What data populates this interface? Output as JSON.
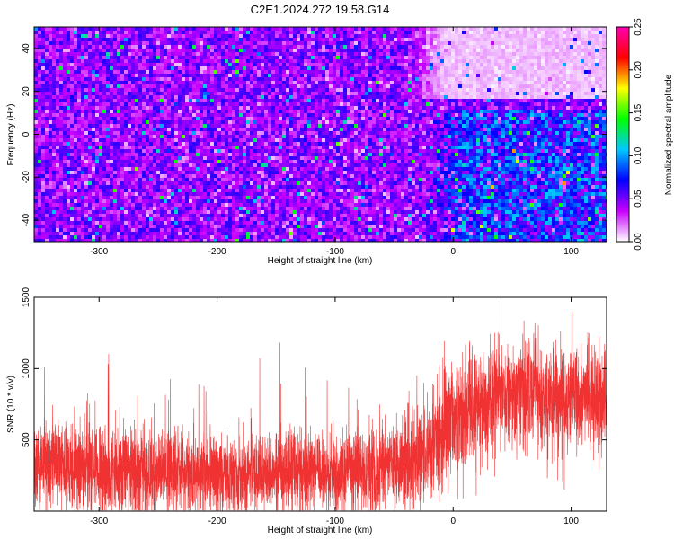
{
  "figure": {
    "title": "C2E1.2024.272.19.58.G14"
  },
  "chart_data": [
    {
      "type": "heatmap",
      "xlabel": "Height of straight line (km)",
      "ylabel": "Frequency (Hz)",
      "xlim": [
        -355,
        130
      ],
      "ylim": [
        -50,
        50
      ],
      "x_ticks": [
        -300,
        -200,
        -100,
        0,
        100
      ],
      "y_ticks": [
        -40,
        -20,
        0,
        20,
        40
      ],
      "colorbar": {
        "label": "Normalized spectral amplitude",
        "range": [
          0.0,
          0.25
        ],
        "ticks": [
          0.0,
          0.05,
          0.1,
          0.15,
          0.2,
          0.25
        ],
        "tick_labels": [
          "0.00",
          "0.05",
          "0.10",
          "0.15",
          "0.20",
          "0.25"
        ],
        "colors": [
          "#ffffff",
          "#c800ff",
          "#0000ff",
          "#00c8ff",
          "#00ff00",
          "#ffff00",
          "#ff0000",
          "#ff00b4"
        ]
      },
      "features": [
        {
          "region": "x -355..-20, y -50..50",
          "typical_amplitude": 0.045
        },
        {
          "region": "x -20..130, y -50..10",
          "typical_amplitude": 0.075
        },
        {
          "region": "x -40..130, y 20..50",
          "typical_amplitude": 0.01
        }
      ]
    },
    {
      "type": "line",
      "xlabel": "Height of straight line (km)",
      "ylabel": "SNR (10 * v/v)",
      "xlim": [
        -355,
        130
      ],
      "ylim": [
        0,
        1500
      ],
      "x_ticks": [
        -300,
        -200,
        -100,
        0,
        100
      ],
      "y_ticks": [
        500,
        1000,
        1500
      ],
      "series": [
        {
          "color": "#f03232",
          "trend_x": [
            -355,
            -300,
            -250,
            -200,
            -150,
            -100,
            -60,
            -40,
            -20,
            0,
            20,
            40,
            60,
            80,
            100,
            130
          ],
          "trend_center": [
            350,
            290,
            270,
            260,
            270,
            280,
            300,
            320,
            430,
            620,
            760,
            800,
            830,
            800,
            790,
            790
          ],
          "trend_spread": [
            160,
            160,
            150,
            140,
            140,
            140,
            150,
            160,
            180,
            200,
            190,
            190,
            200,
            190,
            180,
            180
          ]
        }
      ]
    }
  ]
}
